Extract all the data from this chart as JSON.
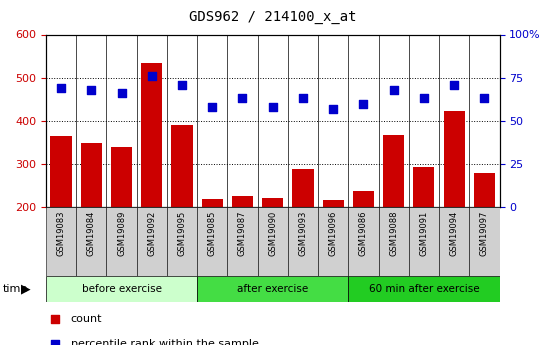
{
  "title": "GDS962 / 214100_x_at",
  "categories": [
    "GSM19083",
    "GSM19084",
    "GSM19089",
    "GSM19092",
    "GSM19095",
    "GSM19085",
    "GSM19087",
    "GSM19090",
    "GSM19093",
    "GSM19096",
    "GSM19086",
    "GSM19088",
    "GSM19091",
    "GSM19094",
    "GSM19097"
  ],
  "counts": [
    365,
    348,
    340,
    535,
    390,
    218,
    225,
    222,
    288,
    216,
    238,
    368,
    292,
    422,
    280
  ],
  "percentile_ranks": [
    69,
    68,
    66,
    76,
    71,
    58,
    63,
    58,
    63,
    57,
    60,
    68,
    63,
    71,
    63
  ],
  "bar_color": "#cc0000",
  "dot_color": "#0000cc",
  "ylim_left": [
    200,
    600
  ],
  "ylim_right": [
    0,
    100
  ],
  "yticks_left": [
    200,
    300,
    400,
    500,
    600
  ],
  "yticks_right": [
    0,
    25,
    50,
    75,
    100
  ],
  "groups": [
    {
      "label": "before exercise",
      "start": 0,
      "end": 5,
      "color": "#ccffcc"
    },
    {
      "label": "after exercise",
      "start": 5,
      "end": 10,
      "color": "#44dd44"
    },
    {
      "label": "60 min after exercise",
      "start": 10,
      "end": 15,
      "color": "#22cc22"
    }
  ],
  "legend_items": [
    {
      "label": "count",
      "color": "#cc0000"
    },
    {
      "label": "percentile rank within the sample",
      "color": "#0000cc"
    }
  ],
  "time_label": "time",
  "title_fontsize": 10,
  "tick_label_color_left": "#cc0000",
  "tick_label_color_right": "#0000cc",
  "bar_width": 0.7,
  "xticklabel_bg": "#d8d8d8",
  "plot_bg": "#ffffff",
  "gridline_color": "#000000"
}
